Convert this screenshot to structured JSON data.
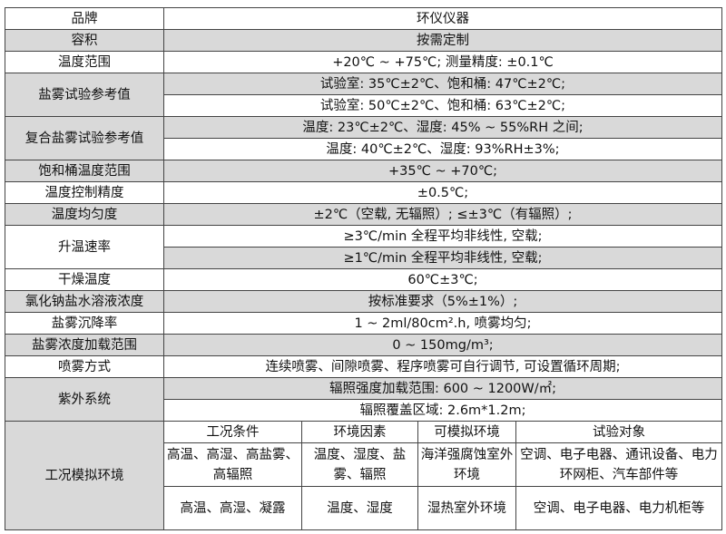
{
  "rows": {
    "brand": {
      "label": "品牌",
      "value": "环仪仪器"
    },
    "volume": {
      "label": "容积",
      "value": "按需定制"
    },
    "temp_range": {
      "label": "温度范围",
      "value": "+20℃ ~ +75℃; 测量精度: ±0.1℃"
    },
    "salt_spray_ref": {
      "label": "盐雾试验参考值",
      "values": [
        "试验室: 35℃±2℃、饱和桶: 47℃±2℃;",
        "试验室: 50℃±2℃、饱和桶: 63℃±2℃;"
      ]
    },
    "composite_ref": {
      "label": "复合盐雾试验参考值",
      "values": [
        "温度: 23℃±2℃、湿度: 45% ~ 55%RH 之间;",
        "温度: 40℃±2℃、湿度: 93%RH±3%;"
      ]
    },
    "saturator_temp": {
      "label": "饱和桶温度范围",
      "value": "+35℃ ~ +70℃;"
    },
    "temp_control": {
      "label": "温度控制精度",
      "value": "±0.5℃;"
    },
    "temp_uniformity": {
      "label": "温度均匀度",
      "value": "±2℃（空载, 无辐照）; ≤±3℃（有辐照）;"
    },
    "heating_rate": {
      "label": "升温速率",
      "values": [
        "≥3℃/min 全程平均非线性, 空载;",
        "≥1℃/min 全程平均非线性, 空载;"
      ]
    },
    "drying_temp": {
      "label": "干燥温度",
      "value": "60℃±3℃;"
    },
    "nacl_conc": {
      "label": "氯化钠盐水溶液浓度",
      "value": "按标准要求（5%±1%）;"
    },
    "settling_rate": {
      "label": "盐雾沉降率",
      "value": "1 ~ 2ml/80cm².h, 喷雾均匀;"
    },
    "spray_conc": {
      "label": "盐雾浓度加载范围",
      "value": "0 ~ 150mg/m³;"
    },
    "spray_mode": {
      "label": "喷雾方式",
      "value": "连续喷雾、间隙喷雾、程序喷雾可自行调节, 可设置循环周期;"
    },
    "uv_system": {
      "label": "紫外系统",
      "values": [
        "辐照强度加载范围: 600 ~ 1200W/㎡;",
        "辐照覆盖区域: 2.6m*1.2m;"
      ]
    },
    "conditions": {
      "label": "工况模拟环境",
      "headers": [
        "工况条件",
        "环境因素",
        "可模拟环境",
        "试验对象"
      ],
      "rows": [
        [
          "高温、高湿、高盐雾、高辐照",
          "温度、湿度、盐雾、辐照",
          "海洋强腐蚀室外环境",
          "空调、电子电器、通讯设备、电力环网柜、汽车部件等"
        ],
        [
          "高温、高湿、凝露",
          "温度、湿度",
          "湿热室外环境",
          "空调、电子电器、电力机柜等"
        ]
      ]
    }
  },
  "colors": {
    "shaded_row": "#d9d9d9",
    "border": "#444444"
  }
}
